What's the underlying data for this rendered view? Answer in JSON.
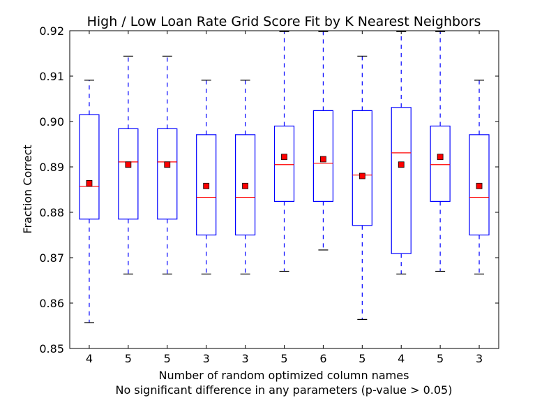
{
  "chart_data": {
    "type": "boxplot",
    "title": "High / Low Loan Rate Grid Score Fit by K Nearest Neighbors",
    "xlabel": "Number of random optimized column names",
    "xlabel_line2": "No significant difference in any parameters (p-value > 0.05)",
    "ylabel": "Fraction Correct",
    "ylim": [
      0.85,
      0.92
    ],
    "yticks": [
      "0.85",
      "0.86",
      "0.87",
      "0.88",
      "0.89",
      "0.90",
      "0.91",
      "0.92"
    ],
    "ytick_values": [
      0.85,
      0.86,
      0.87,
      0.88,
      0.89,
      0.9,
      0.91,
      0.92
    ],
    "grid": false,
    "colors": {
      "box": "#0000ff",
      "median": "#ff0000",
      "mean_marker": "#ff0000",
      "cap": "#000000"
    },
    "categories": [
      "4",
      "5",
      "5",
      "3",
      "3",
      "5",
      "6",
      "5",
      "4",
      "5",
      "3"
    ],
    "boxes": [
      {
        "whisker_low": 0.8557,
        "q1": 0.8785,
        "median": 0.8857,
        "q3": 0.9015,
        "whisker_high": 0.9091,
        "mean": 0.8864
      },
      {
        "whisker_low": 0.8664,
        "q1": 0.8785,
        "median": 0.8911,
        "q3": 0.8984,
        "whisker_high": 0.9144,
        "mean": 0.8905
      },
      {
        "whisker_low": 0.8664,
        "q1": 0.8785,
        "median": 0.8911,
        "q3": 0.8984,
        "whisker_high": 0.9144,
        "mean": 0.8905
      },
      {
        "whisker_low": 0.8664,
        "q1": 0.875,
        "median": 0.8833,
        "q3": 0.8971,
        "whisker_high": 0.9091,
        "mean": 0.8858
      },
      {
        "whisker_low": 0.8664,
        "q1": 0.875,
        "median": 0.8833,
        "q3": 0.8971,
        "whisker_high": 0.9091,
        "mean": 0.8858
      },
      {
        "whisker_low": 0.867,
        "q1": 0.8824,
        "median": 0.8905,
        "q3": 0.899,
        "whisker_high": 0.9198,
        "mean": 0.8922
      },
      {
        "whisker_low": 0.8717,
        "q1": 0.8824,
        "median": 0.8908,
        "q3": 0.9024,
        "whisker_high": 0.9198,
        "mean": 0.8917
      },
      {
        "whisker_low": 0.8564,
        "q1": 0.8771,
        "median": 0.8882,
        "q3": 0.9024,
        "whisker_high": 0.9144,
        "mean": 0.888
      },
      {
        "whisker_low": 0.8664,
        "q1": 0.8709,
        "median": 0.8931,
        "q3": 0.9031,
        "whisker_high": 0.9198,
        "mean": 0.8905
      },
      {
        "whisker_low": 0.867,
        "q1": 0.8824,
        "median": 0.8905,
        "q3": 0.899,
        "whisker_high": 0.9198,
        "mean": 0.8922
      },
      {
        "whisker_low": 0.8664,
        "q1": 0.875,
        "median": 0.8833,
        "q3": 0.8971,
        "whisker_high": 0.9091,
        "mean": 0.8858
      }
    ]
  }
}
